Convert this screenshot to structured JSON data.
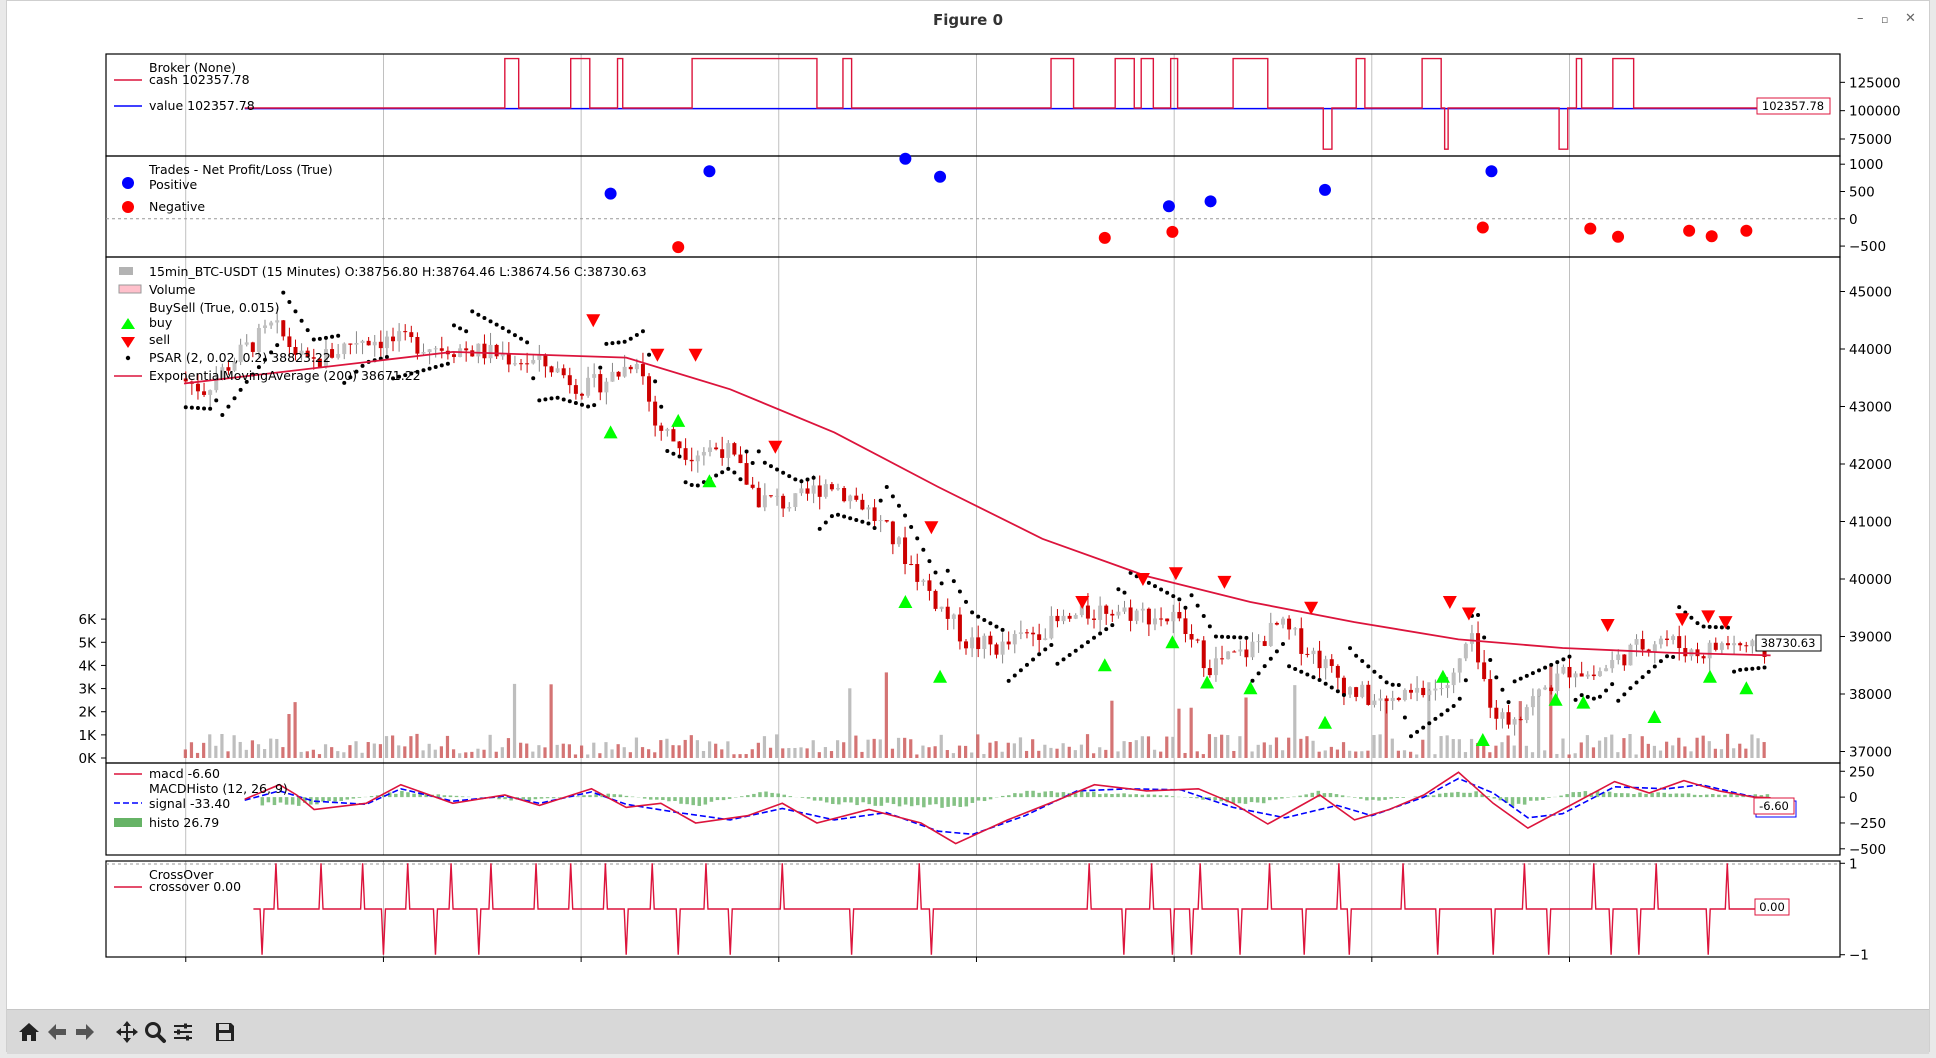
{
  "window": {
    "title": "Figure 0",
    "minimize_glyph": "–",
    "maximize_glyph": "▫",
    "close_glyph": "✕"
  },
  "toolbar": {
    "buttons": [
      {
        "name": "home-icon",
        "tooltip": "Reset original view"
      },
      {
        "name": "back-arrow-icon",
        "tooltip": "Back"
      },
      {
        "name": "forward-arrow-icon",
        "tooltip": "Forward"
      },
      {
        "name": "pan-icon",
        "tooltip": "Pan"
      },
      {
        "name": "zoom-icon",
        "tooltip": "Zoom"
      },
      {
        "name": "subplots-config-icon",
        "tooltip": "Configure subplots"
      },
      {
        "name": "save-icon",
        "tooltip": "Save"
      }
    ]
  },
  "colors": {
    "red": "#dc143c",
    "blue": "#0000ff",
    "green_marker": "#00ff00",
    "red_marker": "#ff0000",
    "volume_up": "#b3b3b3",
    "volume_down": "#cd5c5c",
    "histo": "#66b366",
    "grid": "#b0b0b0"
  },
  "chart_data": [
    {
      "panel": "broker",
      "type": "line",
      "legend": [
        {
          "name": "Broker (None)"
        },
        {
          "name": "cash 102357.78",
          "color": "#dc143c"
        },
        {
          "name": "value 102357.78",
          "color": "#0000ff"
        }
      ],
      "ylim": [
        60000,
        150000
      ],
      "yticks": [
        "125000",
        "100000",
        "75000"
      ],
      "yticks_values": [
        125000,
        100000,
        75000
      ],
      "last_value_label": "102357.78",
      "series": [
        {
          "name": "cash",
          "pulses_up": [
            [
              0.23,
              0.238
            ],
            [
              0.268,
              0.279
            ],
            [
              0.295,
              0.298
            ],
            [
              0.338,
              0.41
            ],
            [
              0.425,
              0.43
            ],
            [
              0.545,
              0.558
            ],
            [
              0.582,
              0.593
            ],
            [
              0.597,
              0.604
            ],
            [
              0.614,
              0.618
            ],
            [
              0.65,
              0.67
            ],
            [
              0.721,
              0.726
            ],
            [
              0.759,
              0.77
            ],
            [
              0.848,
              0.851
            ],
            [
              0.869,
              0.881
            ]
          ],
          "pulses_down": [
            [
              0.702,
              0.707
            ],
            [
              0.772,
              0.774
            ],
            [
              0.838,
              0.843
            ]
          ],
          "base": 102357.78,
          "high": 146000,
          "low": 66000,
          "start_frac": 0.08
        }
      ]
    },
    {
      "panel": "trades",
      "type": "scatter",
      "legend": [
        {
          "name": "Trades - Net Profit/Loss (True)"
        },
        {
          "name": "Positive",
          "color": "#0000ff"
        },
        {
          "name": "Negative",
          "color": "#ff0000"
        }
      ],
      "ylim": [
        -700,
        1150
      ],
      "yticks": [
        "1000",
        "500",
        "0",
        "−500"
      ],
      "yticks_values": [
        1000,
        500,
        0,
        -500
      ],
      "positive": [
        [
          0.291,
          460
        ],
        [
          0.348,
          870
        ],
        [
          0.461,
          1100
        ],
        [
          0.481,
          770
        ],
        [
          0.613,
          230
        ],
        [
          0.637,
          320
        ],
        [
          0.703,
          530
        ],
        [
          0.799,
          870
        ]
      ],
      "negative": [
        [
          0.33,
          -520
        ],
        [
          0.576,
          -350
        ],
        [
          0.615,
          -240
        ],
        [
          0.794,
          -160
        ],
        [
          0.856,
          -180
        ],
        [
          0.872,
          -330
        ],
        [
          0.913,
          -220
        ],
        [
          0.926,
          -320
        ],
        [
          0.946,
          -220
        ]
      ]
    },
    {
      "panel": "price",
      "type": "candlestick",
      "legend": [
        {
          "name": "15min_BTC-USDT (15 Minutes) O:38756.80 H:38764.46 L:38674.56 C:38730.63"
        },
        {
          "name": "Volume"
        },
        {
          "name": "BuySell (True, 0.015)"
        },
        {
          "name": "buy",
          "color": "#00ff00"
        },
        {
          "name": "sell",
          "color": "#ff0000"
        },
        {
          "name": "PSAR (2, 0.02, 0.2) 38823.22",
          "color": "#000000"
        },
        {
          "name": "ExponentialMovingAverage (200) 38671.22",
          "color": "#dc143c"
        }
      ],
      "ylim": [
        36800,
        45600
      ],
      "yticks": [
        "45000",
        "44000",
        "43000",
        "42000",
        "41000",
        "40000",
        "39000",
        "38000",
        "37000"
      ],
      "yticks_values": [
        45000,
        44000,
        43000,
        42000,
        41000,
        40000,
        39000,
        38000,
        37000
      ],
      "volume_ticks": [
        "6K",
        "5K",
        "4K",
        "3K",
        "2K",
        "1K",
        "0K"
      ],
      "volume_ticks_values": [
        6000,
        5000,
        4000,
        3000,
        2000,
        1000,
        0
      ],
      "volume_max": 7000,
      "last_close_label": "38730.63",
      "price_path": [
        [
          0.045,
          43500
        ],
        [
          0.06,
          43300
        ],
        [
          0.08,
          43900
        ],
        [
          0.1,
          44400
        ],
        [
          0.12,
          43700
        ],
        [
          0.15,
          44200
        ],
        [
          0.18,
          44100
        ],
        [
          0.21,
          44000
        ],
        [
          0.23,
          43900
        ],
        [
          0.26,
          43700
        ],
        [
          0.28,
          43300
        ],
        [
          0.3,
          43600
        ],
        [
          0.31,
          43900
        ],
        [
          0.32,
          42700
        ],
        [
          0.34,
          42200
        ],
        [
          0.36,
          42300
        ],
        [
          0.38,
          41400
        ],
        [
          0.4,
          41300
        ],
        [
          0.42,
          41700
        ],
        [
          0.44,
          41300
        ],
        [
          0.46,
          40600
        ],
        [
          0.48,
          39700
        ],
        [
          0.5,
          38900
        ],
        [
          0.52,
          38800
        ],
        [
          0.54,
          39100
        ],
        [
          0.56,
          39300
        ],
        [
          0.58,
          39500
        ],
        [
          0.6,
          39400
        ],
        [
          0.62,
          39300
        ],
        [
          0.64,
          38500
        ],
        [
          0.66,
          38700
        ],
        [
          0.68,
          39200
        ],
        [
          0.7,
          38700
        ],
        [
          0.72,
          38100
        ],
        [
          0.74,
          37800
        ],
        [
          0.76,
          38000
        ],
        [
          0.78,
          38200
        ],
        [
          0.79,
          39000
        ],
        [
          0.8,
          38000
        ],
        [
          0.81,
          37500
        ],
        [
          0.83,
          38000
        ],
        [
          0.85,
          38500
        ],
        [
          0.86,
          38300
        ],
        [
          0.88,
          38700
        ],
        [
          0.9,
          39000
        ],
        [
          0.92,
          38700
        ],
        [
          0.94,
          38900
        ],
        [
          0.96,
          38730
        ]
      ],
      "ema": [
        [
          0.045,
          43400
        ],
        [
          0.2,
          43950
        ],
        [
          0.3,
          43850
        ],
        [
          0.36,
          43300
        ],
        [
          0.42,
          42550
        ],
        [
          0.48,
          41600
        ],
        [
          0.54,
          40700
        ],
        [
          0.6,
          40050
        ],
        [
          0.66,
          39600
        ],
        [
          0.72,
          39250
        ],
        [
          0.78,
          38950
        ],
        [
          0.84,
          38800
        ],
        [
          0.9,
          38720
        ],
        [
          0.96,
          38671
        ]
      ],
      "buy_markers": [
        [
          0.291,
          42550
        ],
        [
          0.33,
          42750
        ],
        [
          0.348,
          41700
        ],
        [
          0.461,
          39600
        ],
        [
          0.481,
          38300
        ],
        [
          0.576,
          38500
        ],
        [
          0.615,
          38900
        ],
        [
          0.635,
          38200
        ],
        [
          0.66,
          38100
        ],
        [
          0.703,
          37500
        ],
        [
          0.771,
          38300
        ],
        [
          0.794,
          37200
        ],
        [
          0.836,
          37900
        ],
        [
          0.852,
          37850
        ],
        [
          0.893,
          37600
        ],
        [
          0.925,
          38300
        ],
        [
          0.946,
          38100
        ]
      ],
      "sell_markers": [
        [
          0.281,
          44500
        ],
        [
          0.318,
          43900
        ],
        [
          0.34,
          43900
        ],
        [
          0.386,
          42300
        ],
        [
          0.476,
          40900
        ],
        [
          0.563,
          39600
        ],
        [
          0.598,
          40000
        ],
        [
          0.617,
          40100
        ],
        [
          0.645,
          39950
        ],
        [
          0.695,
          39500
        ],
        [
          0.775,
          39600
        ],
        [
          0.786,
          39400
        ],
        [
          0.866,
          39200
        ],
        [
          0.909,
          39300
        ],
        [
          0.924,
          39350
        ],
        [
          0.934,
          39250
        ]
      ]
    },
    {
      "panel": "macd",
      "type": "line",
      "legend": [
        {
          "name": "macd -6.60",
          "color": "#dc143c"
        },
        {
          "name": "MACDHisto (12, 26, 9)"
        },
        {
          "name": "signal -33.40",
          "color": "#0000ff"
        },
        {
          "name": "histo 26.79",
          "color": "#66b366"
        }
      ],
      "ylim": [
        -560,
        330
      ],
      "yticks": [
        "250",
        "0",
        "−250",
        "−500"
      ],
      "yticks_values": [
        250,
        0,
        -250,
        -500
      ],
      "last_value_label": "-6.60",
      "macd": [
        [
          0.08,
          -20
        ],
        [
          0.1,
          120
        ],
        [
          0.11,
          20
        ],
        [
          0.12,
          -120
        ],
        [
          0.15,
          -60
        ],
        [
          0.17,
          120
        ],
        [
          0.2,
          -60
        ],
        [
          0.23,
          20
        ],
        [
          0.25,
          -80
        ],
        [
          0.28,
          80
        ],
        [
          0.3,
          -100
        ],
        [
          0.32,
          -60
        ],
        [
          0.34,
          -250
        ],
        [
          0.37,
          -180
        ],
        [
          0.39,
          -60
        ],
        [
          0.41,
          -250
        ],
        [
          0.44,
          -120
        ],
        [
          0.47,
          -250
        ],
        [
          0.49,
          -450
        ],
        [
          0.52,
          -220
        ],
        [
          0.55,
          -20
        ],
        [
          0.57,
          120
        ],
        [
          0.6,
          60
        ],
        [
          0.63,
          80
        ],
        [
          0.65,
          -60
        ],
        [
          0.67,
          -260
        ],
        [
          0.7,
          20
        ],
        [
          0.72,
          -220
        ],
        [
          0.74,
          -120
        ],
        [
          0.76,
          20
        ],
        [
          0.78,
          240
        ],
        [
          0.8,
          -60
        ],
        [
          0.82,
          -300
        ],
        [
          0.84,
          -120
        ],
        [
          0.87,
          150
        ],
        [
          0.89,
          40
        ],
        [
          0.91,
          160
        ],
        [
          0.93,
          60
        ],
        [
          0.95,
          0
        ],
        [
          0.96,
          -7
        ]
      ],
      "signal": [
        [
          0.08,
          -30
        ],
        [
          0.1,
          60
        ],
        [
          0.12,
          -40
        ],
        [
          0.15,
          -70
        ],
        [
          0.17,
          80
        ],
        [
          0.2,
          -40
        ],
        [
          0.23,
          10
        ],
        [
          0.25,
          -60
        ],
        [
          0.28,
          50
        ],
        [
          0.3,
          -70
        ],
        [
          0.33,
          -150
        ],
        [
          0.36,
          -220
        ],
        [
          0.39,
          -110
        ],
        [
          0.42,
          -220
        ],
        [
          0.45,
          -150
        ],
        [
          0.48,
          -330
        ],
        [
          0.5,
          -360
        ],
        [
          0.53,
          -180
        ],
        [
          0.56,
          60
        ],
        [
          0.59,
          80
        ],
        [
          0.62,
          70
        ],
        [
          0.65,
          -100
        ],
        [
          0.68,
          -200
        ],
        [
          0.71,
          -80
        ],
        [
          0.73,
          -180
        ],
        [
          0.76,
          0
        ],
        [
          0.78,
          180
        ],
        [
          0.8,
          40
        ],
        [
          0.82,
          -200
        ],
        [
          0.84,
          -160
        ],
        [
          0.87,
          100
        ],
        [
          0.9,
          80
        ],
        [
          0.92,
          120
        ],
        [
          0.94,
          40
        ],
        [
          0.96,
          -33
        ]
      ],
      "histo": [
        [
          0.12,
          -80
        ],
        [
          0.17,
          60
        ],
        [
          0.24,
          -40
        ],
        [
          0.29,
          40
        ],
        [
          0.34,
          -90
        ],
        [
          0.38,
          60
        ],
        [
          0.42,
          -70
        ],
        [
          0.49,
          -110
        ],
        [
          0.53,
          70
        ],
        [
          0.57,
          50
        ],
        [
          0.61,
          20
        ],
        [
          0.66,
          -80
        ],
        [
          0.7,
          60
        ],
        [
          0.73,
          -40
        ],
        [
          0.79,
          70
        ],
        [
          0.81,
          -100
        ],
        [
          0.85,
          60
        ],
        [
          0.9,
          40
        ],
        [
          0.93,
          30
        ],
        [
          0.96,
          27
        ]
      ]
    },
    {
      "panel": "crossover",
      "type": "line",
      "legend": [
        {
          "name": "CrossOver"
        },
        {
          "name": "crossover 0.00",
          "color": "#dc143c"
        }
      ],
      "ylim": [
        -1.05,
        1.05
      ],
      "yticks": [
        "1",
        "−1"
      ],
      "yticks_values": [
        1,
        -1
      ],
      "last_value_label": "0.00",
      "start_frac": 0.085,
      "up_spikes": [
        0.098,
        0.124,
        0.148,
        0.174,
        0.199,
        0.222,
        0.248,
        0.268,
        0.288,
        0.315,
        0.346,
        0.39,
        0.469,
        0.567,
        0.603,
        0.631,
        0.671,
        0.711,
        0.748,
        0.818,
        0.858,
        0.894,
        0.935
      ],
      "down_spikes": [
        0.09,
        0.16,
        0.19,
        0.215,
        0.3,
        0.33,
        0.36,
        0.43,
        0.476,
        0.587,
        0.615,
        0.626,
        0.654,
        0.691,
        0.717,
        0.768,
        0.8,
        0.832,
        0.868,
        0.884,
        0.924
      ]
    }
  ]
}
